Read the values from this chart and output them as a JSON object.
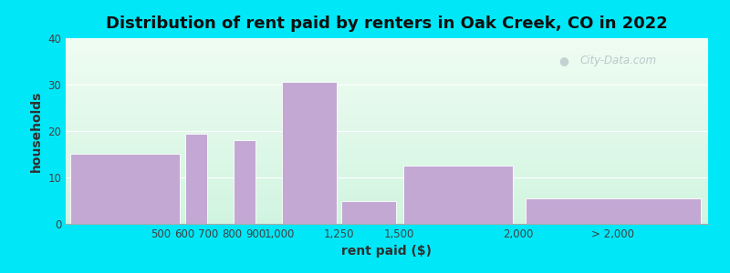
{
  "title": "Distribution of rent paid by renters in Oak Creek, CO in 2022",
  "xlabel": "rent paid ($)",
  "ylabel": "households",
  "background_outer": "#00e8f8",
  "bar_color": "#c4a8d4",
  "yticks": [
    0,
    10,
    20,
    30,
    40
  ],
  "ylim": [
    0,
    40
  ],
  "watermark": "City-Data.com",
  "title_fontsize": 13,
  "axis_label_fontsize": 10,
  "tick_fontsize": 8.5,
  "bar_lefts": [
    100,
    600,
    700,
    800,
    900,
    1000,
    1250,
    1500,
    2000
  ],
  "bar_rights": [
    600,
    700,
    800,
    900,
    1000,
    1250,
    1500,
    2000,
    2800
  ],
  "bar_values": [
    15,
    19.5,
    0,
    18,
    0,
    30.5,
    5,
    12.5,
    5.5
  ],
  "tick_positions": [
    500,
    600,
    700,
    800,
    900,
    1000,
    1250,
    1500,
    2000,
    2400
  ],
  "tick_labels": [
    "500",
    "600",
    "700",
    "800",
    "900",
    "1,000",
    "1,250",
    "1,500",
    "2,000",
    "> 2,000"
  ],
  "xlim": [
    100,
    2800
  ],
  "bg_gradient_top": "#e8f8f0",
  "bg_gradient_bottom": "#dff0e8"
}
